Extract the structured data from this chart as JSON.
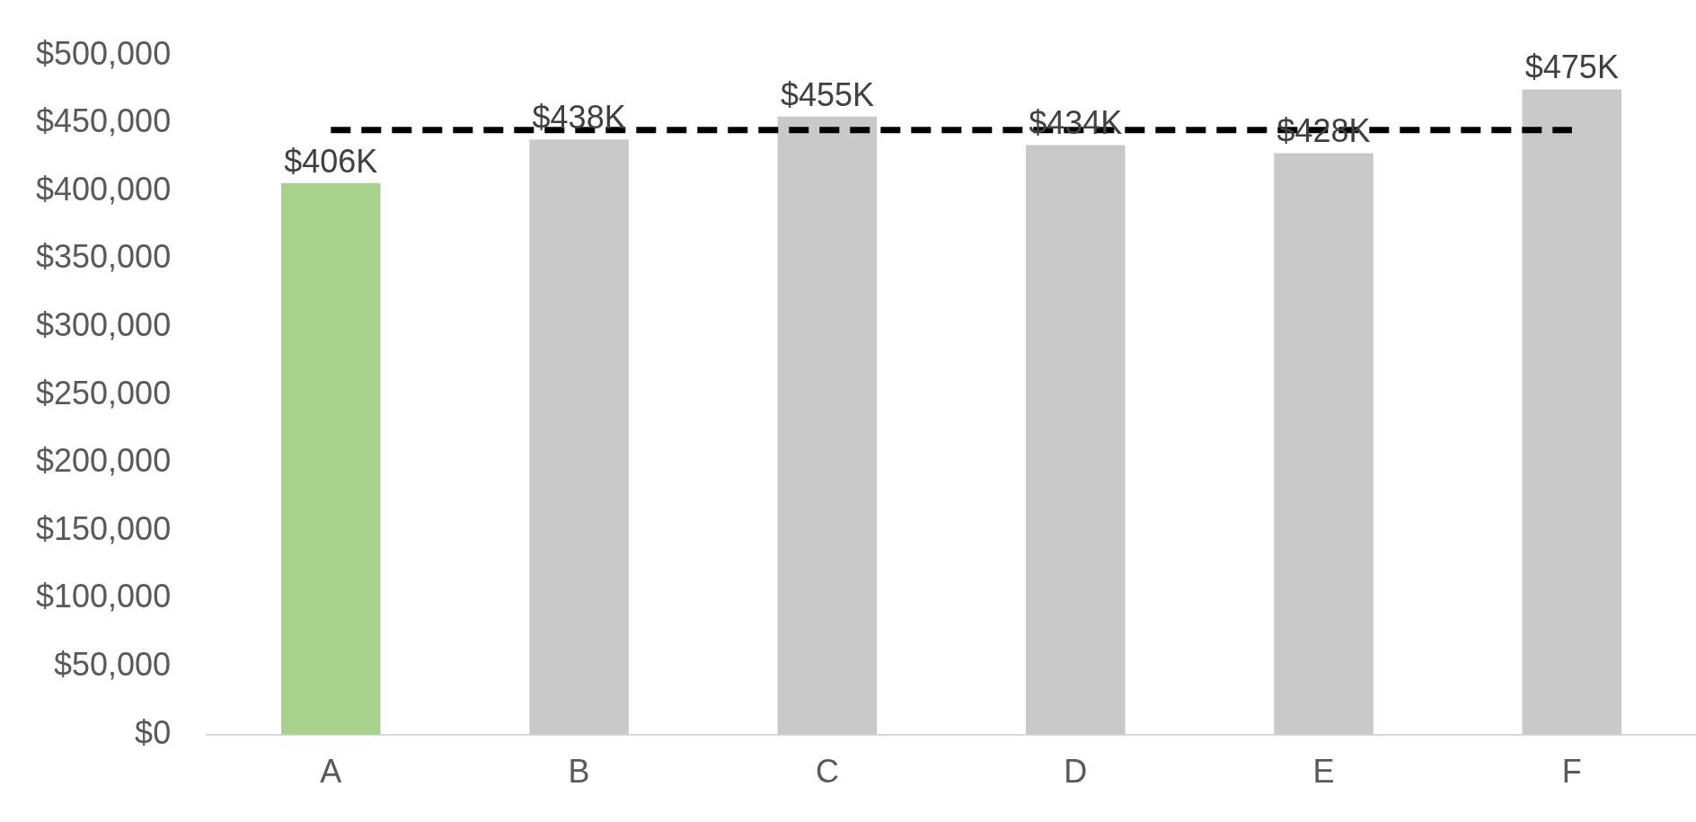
{
  "chart_data": {
    "type": "bar",
    "categories": [
      "A",
      "B",
      "C",
      "D",
      "E",
      "F"
    ],
    "values": [
      406000,
      438000,
      455000,
      434000,
      428000,
      475000
    ],
    "colors": [
      "#a9d18e",
      "#c9c9c9",
      "#c9c9c9",
      "#c9c9c9",
      "#c9c9c9",
      "#c9c9c9"
    ],
    "value_labels": [
      "$406K",
      "$438K",
      "$455K",
      "$434K",
      "$428K",
      "$475K"
    ],
    "ylim": [
      0,
      500000
    ],
    "yticks": [
      {
        "value": 0,
        "label": "$0"
      },
      {
        "value": 50000,
        "label": "$50,000"
      },
      {
        "value": 100000,
        "label": "$100,000"
      },
      {
        "value": 150000,
        "label": "$150,000"
      },
      {
        "value": 200000,
        "label": "$200,000"
      },
      {
        "value": 250000,
        "label": "$250,000"
      },
      {
        "value": 300000,
        "label": "$300,000"
      },
      {
        "value": 350000,
        "label": "$350,000"
      },
      {
        "value": 400000,
        "label": "$400,000"
      },
      {
        "value": 450000,
        "label": "$450,000"
      },
      {
        "value": 500000,
        "label": "$500,000"
      }
    ],
    "ref_lines": [
      {
        "axis": "y",
        "value": 445000,
        "color": "#000000",
        "line_style": "dashed"
      }
    ],
    "grid": false,
    "legend": false
  }
}
